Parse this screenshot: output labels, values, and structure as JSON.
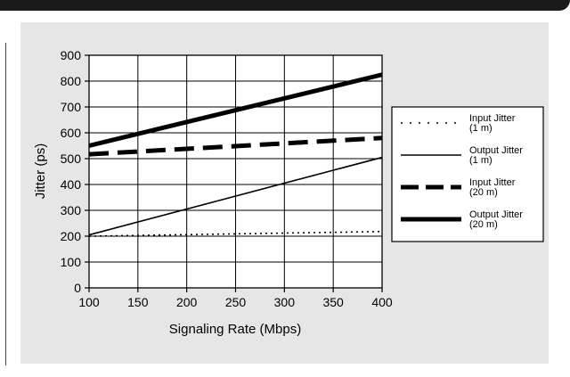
{
  "chart_data": {
    "type": "line",
    "xlabel": "Signaling Rate (Mbps)",
    "ylabel": "Jitter (ps)",
    "xlim": [
      100,
      400
    ],
    "ylim": [
      0,
      900
    ],
    "xticks": [
      100,
      150,
      200,
      250,
      300,
      350,
      400
    ],
    "yticks": [
      0,
      100,
      200,
      300,
      400,
      500,
      600,
      700,
      800,
      900
    ],
    "grid": true,
    "legend_position": "right",
    "series": [
      {
        "name_lines": [
          "Input Jitter",
          "(1 m)"
        ],
        "style": "dotted",
        "width": "thin",
        "x": [
          100,
          400
        ],
        "y": [
          200,
          218
        ]
      },
      {
        "name_lines": [
          "Output Jitter",
          "(1 m)"
        ],
        "style": "solid",
        "width": "thin",
        "x": [
          100,
          400
        ],
        "y": [
          205,
          505
        ]
      },
      {
        "name_lines": [
          "Input Jitter",
          "(20 m)"
        ],
        "style": "dashed",
        "width": "thick",
        "x": [
          100,
          400
        ],
        "y": [
          517,
          580
        ]
      },
      {
        "name_lines": [
          "Output Jitter",
          "(20 m)"
        ],
        "style": "solid",
        "width": "thick",
        "x": [
          100,
          400
        ],
        "y": [
          550,
          825
        ]
      }
    ]
  }
}
